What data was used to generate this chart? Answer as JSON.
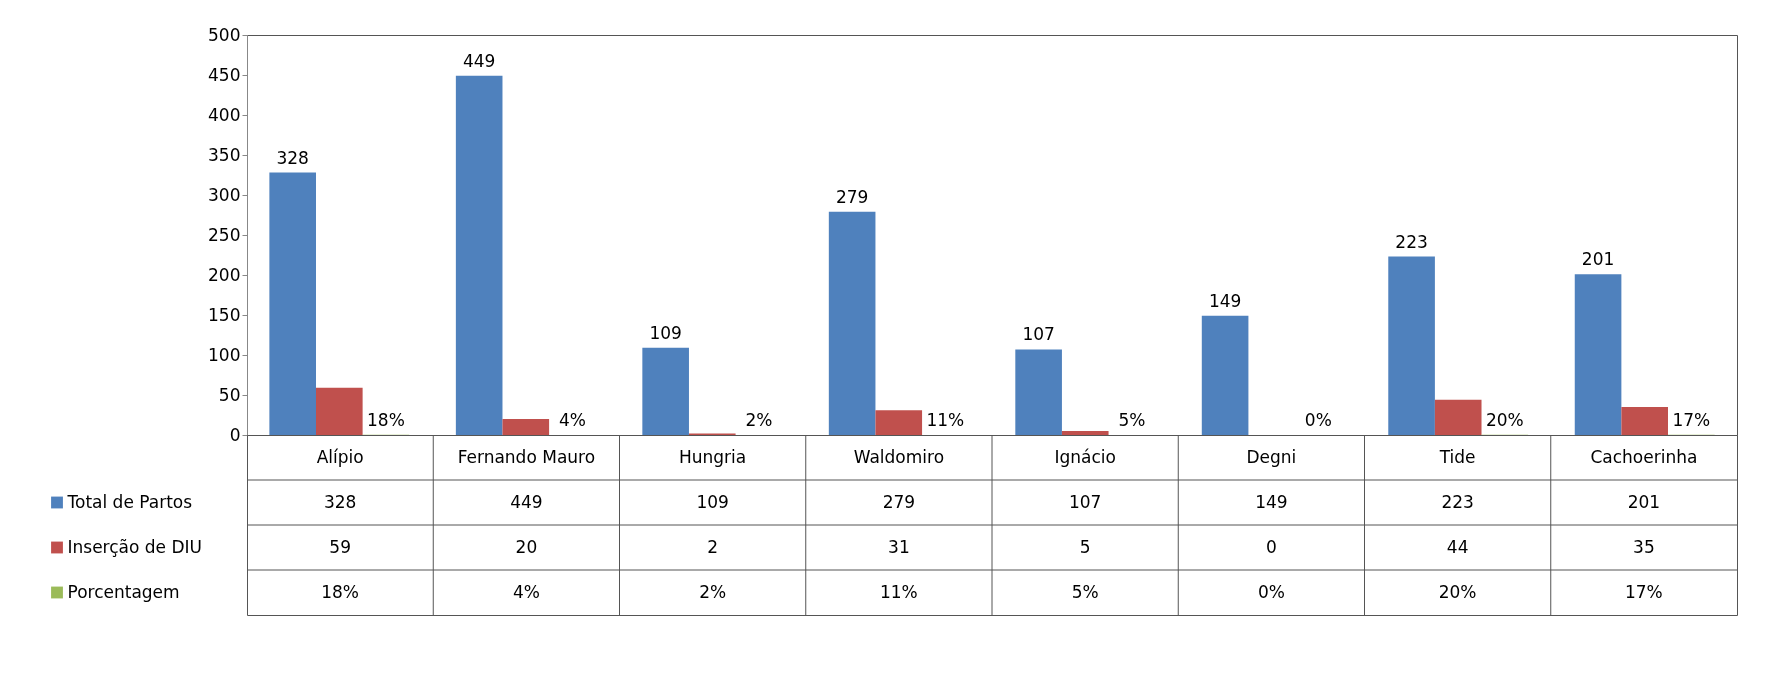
{
  "chart_data": {
    "type": "bar",
    "categories": [
      "Alípio",
      "Fernando Mauro",
      "Hungria",
      "Waldomiro",
      "Ignácio",
      "Degni",
      "Tide",
      "Cachoerinha"
    ],
    "series": [
      {
        "name": "Total de Partos",
        "color": "#4f81bd",
        "values": [
          328,
          449,
          109,
          279,
          107,
          149,
          223,
          201
        ],
        "value_labels": [
          "328",
          "449",
          "109",
          "279",
          "107",
          "149",
          "223",
          "201"
        ]
      },
      {
        "name": "Inserção de DIU",
        "color": "#c0504d",
        "values": [
          59,
          20,
          2,
          31,
          5,
          0,
          44,
          35
        ],
        "value_labels": [
          "59",
          "20",
          "2",
          "31",
          "5",
          "0",
          "44",
          "35"
        ],
        "data_labels": false
      },
      {
        "name": "Porcentagem",
        "color": "#9bbb59",
        "values": [
          0.18,
          0.04,
          0.02,
          0.11,
          0.05,
          0,
          0.2,
          0.17
        ],
        "value_labels": [
          "18%",
          "4%",
          "2%",
          "11%",
          "5%",
          "0%",
          "20%",
          "17%"
        ]
      }
    ],
    "ylim": [
      0,
      500
    ],
    "yticks": [
      0,
      50,
      100,
      150,
      200,
      250,
      300,
      350,
      400,
      450,
      500
    ],
    "grid": false,
    "legend": "bottom"
  }
}
